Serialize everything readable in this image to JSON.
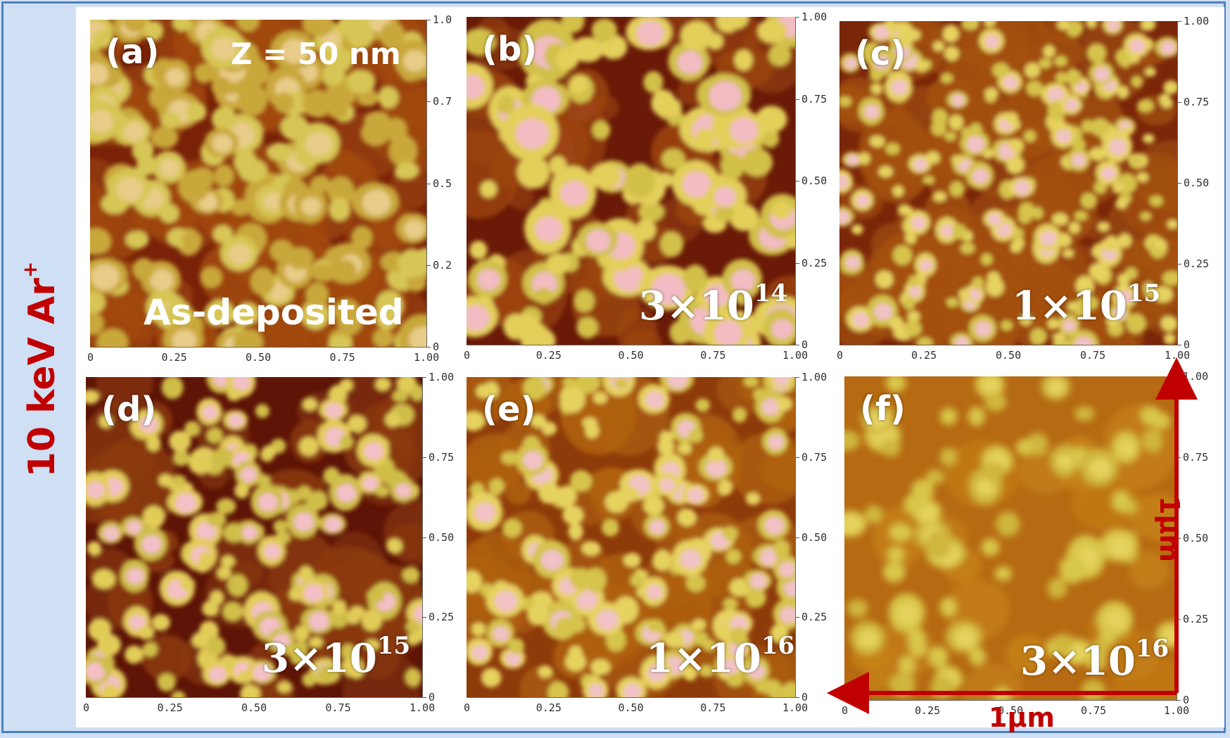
{
  "side_label": {
    "text": "10 keV Ar",
    "superscript": "+"
  },
  "colors": {
    "accent": "#c00000",
    "border": "#4f81bd",
    "background": "#cfe0f4",
    "afm_dark": "#6e1c08",
    "afm_mid": "#b56a12",
    "afm_light": "#d6c84a",
    "afm_peak": "#f0b8c0"
  },
  "panels": [
    {
      "label": "(a)",
      "dose_base": "",
      "dose_exp": "",
      "extra": "As-deposited",
      "z_label": "Z = 50 nm",
      "x_ticks": [
        "0",
        "0.25",
        "0.50",
        "0.75",
        "1.00"
      ],
      "y_ticks": [
        "1.0",
        "0.7",
        "0.5",
        "0.2",
        "0"
      ]
    },
    {
      "label": "(b)",
      "dose_base": "3×10",
      "dose_exp": "14",
      "extra": "",
      "z_label": "",
      "x_ticks": [
        "0",
        "0.25",
        "0.50",
        "0.75",
        "1.00"
      ],
      "y_ticks": [
        "1.00",
        "0.75",
        "0.50",
        "0.25",
        "0"
      ]
    },
    {
      "label": "(c)",
      "dose_base": "1×10",
      "dose_exp": "15",
      "extra": "",
      "z_label": "",
      "x_ticks": [
        "0",
        "0.25",
        "0.50",
        "0.75",
        "1.00"
      ],
      "y_ticks": [
        "1.00",
        "0.75",
        "0.50",
        "0.25",
        "0"
      ]
    },
    {
      "label": "(d)",
      "dose_base": "3×10",
      "dose_exp": "15",
      "extra": "",
      "z_label": "",
      "x_ticks": [
        "0",
        "0.25",
        "0.50",
        "0.75",
        "1.00"
      ],
      "y_ticks": [
        "1.00",
        "0.75",
        "0.50",
        "0.25",
        "0"
      ]
    },
    {
      "label": "(e)",
      "dose_base": "1×10",
      "dose_exp": "16",
      "extra": "",
      "z_label": "",
      "x_ticks": [
        "0",
        "0.25",
        "0.50",
        "0.75",
        "1.00"
      ],
      "y_ticks": [
        "1.00",
        "0.75",
        "0.50",
        "0.25",
        "0"
      ]
    },
    {
      "label": "(f)",
      "dose_base": "3×10",
      "dose_exp": "16",
      "extra": "",
      "z_label": "",
      "x_ticks": [
        "0",
        "0.25",
        "0.50",
        "0.75",
        "1.00"
      ],
      "y_ticks": [
        "1.00",
        "0.75",
        "0.50",
        "0.25",
        "0"
      ]
    }
  ],
  "scale_bar": {
    "x_label": "1μm",
    "y_label": "1μm"
  }
}
